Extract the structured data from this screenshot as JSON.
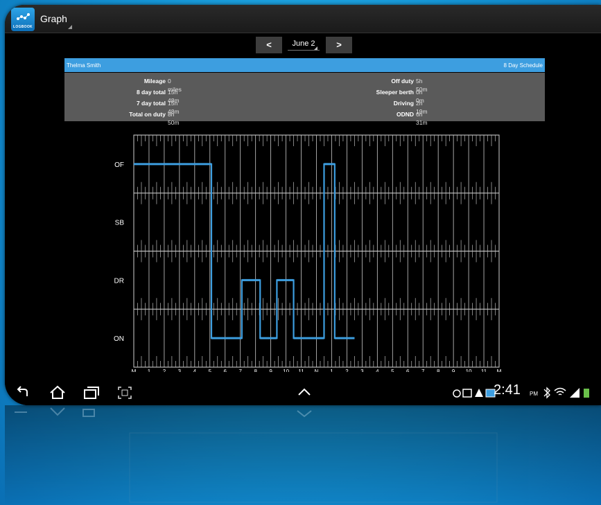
{
  "app": {
    "title": "Graph",
    "logo_text": "LOGBOOK"
  },
  "date_nav": {
    "prev_label": "<",
    "next_label": ">",
    "current_date": "June 2"
  },
  "header": {
    "driver_name": "Thelma Smith",
    "schedule": "8 Day Schedule"
  },
  "summary": {
    "left": [
      {
        "label": "Mileage",
        "value": "0 miles"
      },
      {
        "label": "8 day total",
        "value": "15h 48m"
      },
      {
        "label": "7 day total",
        "value": "15h 48m"
      },
      {
        "label": "Total on duty",
        "value": "8h 50m"
      }
    ],
    "right": [
      {
        "label": "Off duty",
        "value": "5h 50m"
      },
      {
        "label": "Sleeper berth",
        "value": "0h 0m"
      },
      {
        "label": "Driving",
        "value": "2h 19m"
      },
      {
        "label": "ODND",
        "value": "6h 31m"
      }
    ]
  },
  "chart_data": {
    "type": "line",
    "rows": [
      "OF",
      "SB",
      "DR",
      "ON"
    ],
    "hour_labels": [
      "M",
      "1",
      "2",
      "3",
      "4",
      "5",
      "6",
      "7",
      "8",
      "9",
      "10",
      "11",
      "N",
      "1",
      "2",
      "3",
      "4",
      "5",
      "6",
      "7",
      "8",
      "9",
      "10",
      "11",
      "M"
    ],
    "segments": [
      {
        "status": "OF",
        "start": 0,
        "end": 5.1
      },
      {
        "status": "ON",
        "start": 5.1,
        "end": 7.1
      },
      {
        "status": "DR",
        "start": 7.1,
        "end": 8.3
      },
      {
        "status": "ON",
        "start": 8.3,
        "end": 9.4
      },
      {
        "status": "DR",
        "start": 9.4,
        "end": 10.5
      },
      {
        "status": "ON",
        "start": 10.5,
        "end": 12.5
      },
      {
        "status": "OF",
        "start": 12.5,
        "end": 13.2
      },
      {
        "status": "ON",
        "start": 13.2,
        "end": 14.5
      }
    ],
    "line_color": "#3d9ee0",
    "grid": true
  },
  "nav_bar": {
    "time": "2:41",
    "ampm": "PM",
    "icons": [
      "back-icon",
      "home-icon",
      "recent-apps-icon",
      "screenshot-icon",
      "up-arrow-icon",
      "recycle-icon",
      "gallery-icon",
      "warning-icon",
      "card-icon",
      "bluetooth-icon",
      "wifi-icon",
      "signal-icon"
    ]
  }
}
